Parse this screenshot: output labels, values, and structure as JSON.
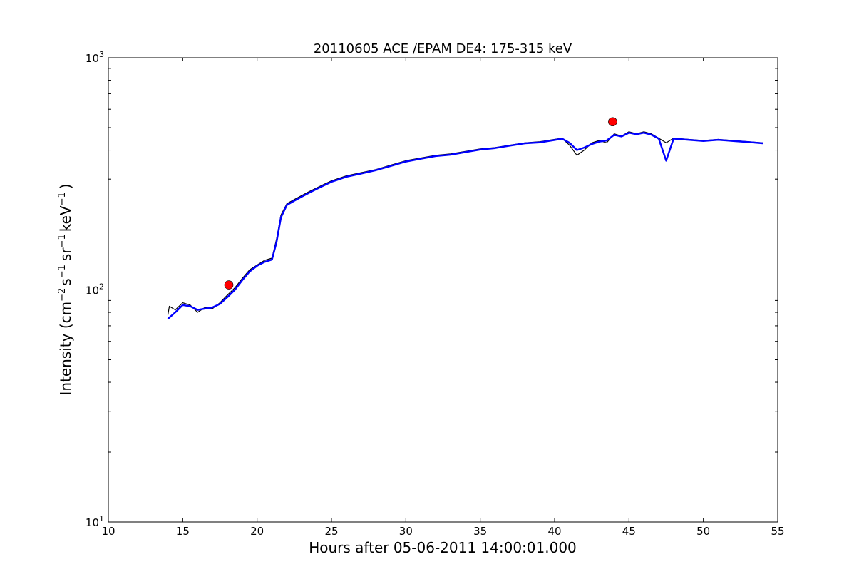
{
  "chart_data": {
    "type": "line",
    "title": "20110605 ACE /EPAM DE4: 175-315 keV",
    "xlabel": "Hours after 05-06-2011 14:00:01.000",
    "ylabel": {
      "prefix": "Intensity (cm",
      "sup1": "−2",
      "part2": "s",
      "sup2": "−1",
      "part3": "sr",
      "sup3": "−1",
      "part4": "keV",
      "sup4": "−1",
      "suffix": ")"
    },
    "xlim": [
      10,
      55
    ],
    "ylim": [
      10,
      1000
    ],
    "yscale": "log",
    "x_ticks": [
      10,
      15,
      20,
      25,
      30,
      35,
      40,
      45,
      50,
      55
    ],
    "x_tick_labels": [
      "10",
      "15",
      "20",
      "25",
      "30",
      "35",
      "40",
      "45",
      "50",
      "55"
    ],
    "y_ticks": [
      {
        "value": 10,
        "base": "10",
        "exp": "1"
      },
      {
        "value": 100,
        "base": "10",
        "exp": "2"
      },
      {
        "value": 1000,
        "base": "10",
        "exp": "3"
      }
    ],
    "grid": false,
    "series": [
      {
        "color": "#000000",
        "style": "line",
        "x": [
          14.0,
          14.1,
          14.5,
          15.0,
          15.5,
          16.0,
          16.5,
          17.0,
          17.5,
          18.0,
          18.5,
          19.0,
          19.5,
          20.0,
          20.5,
          21.0,
          21.3,
          21.6,
          22.0,
          22.5,
          23.0,
          23.5,
          24.0,
          24.5,
          25.0,
          26.0,
          27.0,
          28.0,
          29.0,
          30.0,
          31.0,
          32.0,
          33.0,
          34.0,
          35.0,
          36.0,
          37.0,
          38.0,
          39.0,
          40.0,
          40.5,
          41.0,
          41.5,
          42.0,
          42.5,
          43.0,
          43.5,
          44.0,
          44.5,
          45.0,
          45.5,
          46.0,
          46.5,
          47.0,
          47.5,
          48.0,
          49.0,
          50.0,
          51.0,
          52.0,
          53.0,
          54.0
        ],
        "y": [
          78,
          85,
          82,
          88,
          86,
          80,
          84,
          83,
          88,
          95,
          102,
          112,
          122,
          128,
          134,
          137,
          165,
          210,
          235,
          245,
          255,
          265,
          275,
          285,
          295,
          310,
          320,
          330,
          345,
          360,
          370,
          380,
          385,
          395,
          405,
          410,
          420,
          430,
          435,
          445,
          450,
          420,
          380,
          400,
          430,
          440,
          430,
          470,
          460,
          480,
          470,
          480,
          470,
          450,
          430,
          450,
          445,
          440,
          445,
          440,
          435,
          430
        ]
      },
      {
        "color": "#0000ff",
        "style": "line",
        "x": [
          14.0,
          14.5,
          15.0,
          15.5,
          16.0,
          16.5,
          17.0,
          17.5,
          18.0,
          18.5,
          19.0,
          19.5,
          20.0,
          20.5,
          21.0,
          21.3,
          21.6,
          22.0,
          22.5,
          23.0,
          23.5,
          24.0,
          24.5,
          25.0,
          26.0,
          27.0,
          28.0,
          29.0,
          30.0,
          31.0,
          32.0,
          33.0,
          34.0,
          35.0,
          36.0,
          37.0,
          38.0,
          39.0,
          40.0,
          40.5,
          41.0,
          41.5,
          42.0,
          42.5,
          43.0,
          43.5,
          44.0,
          44.5,
          45.0,
          45.5,
          46.0,
          46.5,
          47.0,
          47.5,
          48.0,
          49.0,
          50.0,
          51.0,
          52.0,
          53.0,
          54.0
        ],
        "y": [
          75,
          80,
          86,
          85,
          82,
          83,
          84,
          87,
          93,
          100,
          110,
          120,
          127,
          132,
          135,
          160,
          205,
          232,
          242,
          252,
          262,
          272,
          282,
          292,
          307,
          317,
          328,
          342,
          357,
          367,
          377,
          382,
          392,
          402,
          408,
          418,
          428,
          432,
          442,
          448,
          430,
          400,
          410,
          425,
          435,
          440,
          465,
          458,
          475,
          468,
          475,
          466,
          448,
          360,
          448,
          443,
          438,
          443,
          438,
          433,
          428
        ]
      }
    ],
    "markers": [
      {
        "x": 18.1,
        "y": 105,
        "color": "#ff0000"
      },
      {
        "x": 43.9,
        "y": 530,
        "color": "#ff0000"
      }
    ]
  }
}
